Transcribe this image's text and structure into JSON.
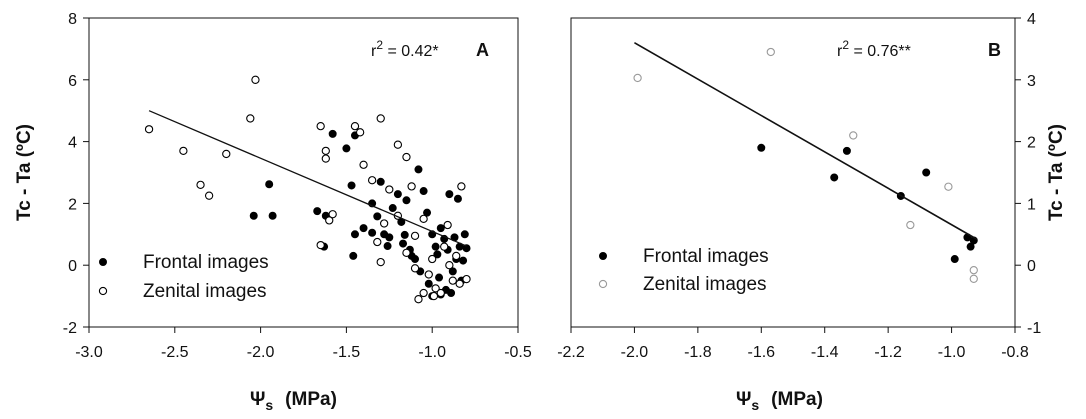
{
  "chart_data": [
    {
      "type": "scatter",
      "panel_label": "A",
      "annotation": {
        "prefix": "r",
        "superscript": "2",
        "text": " = 0.42*"
      },
      "xlabel": {
        "symbol": "Ψ",
        "subscript": "s",
        "units": "(MPa)"
      },
      "ylabel": "Tc - Ta (ºC)",
      "xlim": [
        -3.0,
        -0.5
      ],
      "ylim": [
        -2,
        8
      ],
      "xticks": [
        -3.0,
        -2.5,
        -2.0,
        -1.5,
        -1.0,
        -0.5
      ],
      "xtick_labels": [
        "-3.0",
        "-2.5",
        "-2.0",
        "-1.5",
        "-1.0",
        "-0.5"
      ],
      "yticks": [
        -2,
        0,
        2,
        4,
        6,
        8
      ],
      "ytick_labels": [
        "-2",
        "0",
        "2",
        "4",
        "6",
        "8"
      ],
      "yaxis_side": "left",
      "grid": false,
      "legend_position": "bottom-left",
      "regression_line": {
        "x": [
          -2.65,
          -0.8
        ],
        "y": [
          5.0,
          0.62
        ]
      },
      "series": [
        {
          "name": "Frontal images",
          "marker": "filled-circle",
          "color": "#000000",
          "points": [
            [
              -2.04,
              1.6
            ],
            [
              -1.95,
              2.62
            ],
            [
              -1.93,
              1.6
            ],
            [
              -1.67,
              1.75
            ],
            [
              -1.62,
              1.6
            ],
            [
              -1.63,
              0.6
            ],
            [
              -1.58,
              4.25
            ],
            [
              -1.5,
              3.78
            ],
            [
              -1.45,
              4.2
            ],
            [
              -1.47,
              2.58
            ],
            [
              -1.45,
              1.0
            ],
            [
              -1.46,
              0.3
            ],
            [
              -1.4,
              1.2
            ],
            [
              -1.35,
              2.0
            ],
            [
              -1.32,
              1.58
            ],
            [
              -1.3,
              2.7
            ],
            [
              -1.28,
              1.0
            ],
            [
              -1.26,
              0.62
            ],
            [
              -1.23,
              1.85
            ],
            [
              -1.2,
              2.3
            ],
            [
              -1.18,
              1.4
            ],
            [
              -1.16,
              0.98
            ],
            [
              -1.15,
              2.1
            ],
            [
              -1.13,
              0.5
            ],
            [
              -1.1,
              0.2
            ],
            [
              -1.08,
              3.1
            ],
            [
              -1.05,
              2.4
            ],
            [
              -1.03,
              1.7
            ],
            [
              -1.0,
              1.0
            ],
            [
              -0.98,
              0.6
            ],
            [
              -0.96,
              -0.4
            ],
            [
              -0.95,
              1.2
            ],
            [
              -0.93,
              0.85
            ],
            [
              -0.91,
              0.5
            ],
            [
              -0.9,
              2.3
            ],
            [
              -0.88,
              -0.2
            ],
            [
              -0.87,
              0.9
            ],
            [
              -0.86,
              0.2
            ],
            [
              -0.85,
              2.15
            ],
            [
              -0.84,
              0.6
            ],
            [
              -0.83,
              -0.5
            ],
            [
              -0.82,
              0.15
            ],
            [
              -0.81,
              1.0
            ],
            [
              -0.8,
              0.55
            ],
            [
              -0.95,
              -0.95
            ],
            [
              -1.0,
              -1.0
            ],
            [
              -1.02,
              -0.6
            ],
            [
              -1.07,
              -0.2
            ],
            [
              -1.12,
              0.3
            ],
            [
              -0.89,
              -0.9
            ],
            [
              -0.92,
              -0.8
            ],
            [
              -1.25,
              0.9
            ],
            [
              -1.35,
              1.05
            ],
            [
              -1.17,
              0.7
            ],
            [
              -0.97,
              0.35
            ]
          ]
        },
        {
          "name": "Zenital images",
          "marker": "open-circle",
          "color": "#000000",
          "points": [
            [
              -2.65,
              4.4
            ],
            [
              -2.45,
              3.7
            ],
            [
              -2.35,
              2.6
            ],
            [
              -2.3,
              2.25
            ],
            [
              -2.2,
              3.6
            ],
            [
              -2.06,
              4.75
            ],
            [
              -2.03,
              6.0
            ],
            [
              -1.65,
              4.5
            ],
            [
              -1.62,
              3.7
            ],
            [
              -1.62,
              3.45
            ],
            [
              -1.58,
              1.65
            ],
            [
              -1.6,
              1.45
            ],
            [
              -1.65,
              0.65
            ],
            [
              -1.45,
              4.5
            ],
            [
              -1.42,
              4.3
            ],
            [
              -1.4,
              3.25
            ],
            [
              -1.35,
              2.75
            ],
            [
              -1.3,
              4.75
            ],
            [
              -1.3,
              0.1
            ],
            [
              -1.32,
              0.75
            ],
            [
              -1.25,
              2.45
            ],
            [
              -1.2,
              3.9
            ],
            [
              -1.15,
              3.5
            ],
            [
              -1.12,
              2.55
            ],
            [
              -1.2,
              1.6
            ],
            [
              -1.15,
              0.4
            ],
            [
              -1.1,
              -0.1
            ],
            [
              -1.05,
              1.5
            ],
            [
              -1.02,
              -0.3
            ],
            [
              -1.0,
              0.2
            ],
            [
              -0.98,
              -0.75
            ],
            [
              -0.95,
              -0.9
            ],
            [
              -0.93,
              0.6
            ],
            [
              -0.91,
              1.3
            ],
            [
              -0.88,
              -0.5
            ],
            [
              -0.86,
              0.3
            ],
            [
              -0.84,
              -0.6
            ],
            [
              -0.83,
              2.55
            ],
            [
              -0.8,
              -0.45
            ],
            [
              -1.08,
              -1.1
            ],
            [
              -1.05,
              -0.9
            ],
            [
              -0.99,
              -1.0
            ],
            [
              -1.1,
              0.95
            ],
            [
              -1.28,
              1.35
            ],
            [
              -0.9,
              0.0
            ]
          ]
        }
      ]
    },
    {
      "type": "scatter",
      "panel_label": "B",
      "annotation": {
        "prefix": "r",
        "superscript": "2",
        "text": " = 0.76**"
      },
      "xlabel": {
        "symbol": "Ψ",
        "subscript": "s",
        "units": "(MPa)"
      },
      "ylabel": "Tc - Ta (ºC)",
      "xlim": [
        -2.2,
        -0.8
      ],
      "ylim": [
        -1,
        4
      ],
      "xticks": [
        -2.2,
        -2.0,
        -1.8,
        -1.6,
        -1.4,
        -1.2,
        -1.0,
        -0.8
      ],
      "xtick_labels": [
        "-2.2",
        "-2.0",
        "-1.8",
        "-1.6",
        "-1.4",
        "-1.2",
        "-1.0",
        "-0.8"
      ],
      "yticks": [
        -1,
        0,
        1,
        2,
        3,
        4
      ],
      "ytick_labels": [
        "-1",
        "0",
        "1",
        "2",
        "3",
        "4"
      ],
      "yaxis_side": "right",
      "grid": false,
      "legend_position": "bottom-left",
      "regression_line": {
        "x": [
          -2.0,
          -0.92
        ],
        "y": [
          3.6,
          0.42
        ]
      },
      "series": [
        {
          "name": "Frontal images",
          "marker": "filled-circle",
          "color": "#000000",
          "points": [
            [
              -1.6,
              1.9
            ],
            [
              -1.33,
              1.85
            ],
            [
              -1.37,
              1.42
            ],
            [
              -1.16,
              1.12
            ],
            [
              -1.08,
              1.5
            ],
            [
              -0.99,
              0.1
            ],
            [
              -0.95,
              0.45
            ],
            [
              -0.94,
              0.3
            ],
            [
              -0.93,
              0.4
            ]
          ]
        },
        {
          "name": "Zenital images",
          "marker": "open-circle",
          "color": "#999999",
          "points": [
            [
              -1.99,
              3.03
            ],
            [
              -1.57,
              3.45
            ],
            [
              -1.31,
              2.1
            ],
            [
              -1.13,
              0.65
            ],
            [
              -1.01,
              1.27
            ],
            [
              -0.93,
              -0.08
            ],
            [
              -0.93,
              -0.22
            ]
          ]
        }
      ]
    }
  ]
}
